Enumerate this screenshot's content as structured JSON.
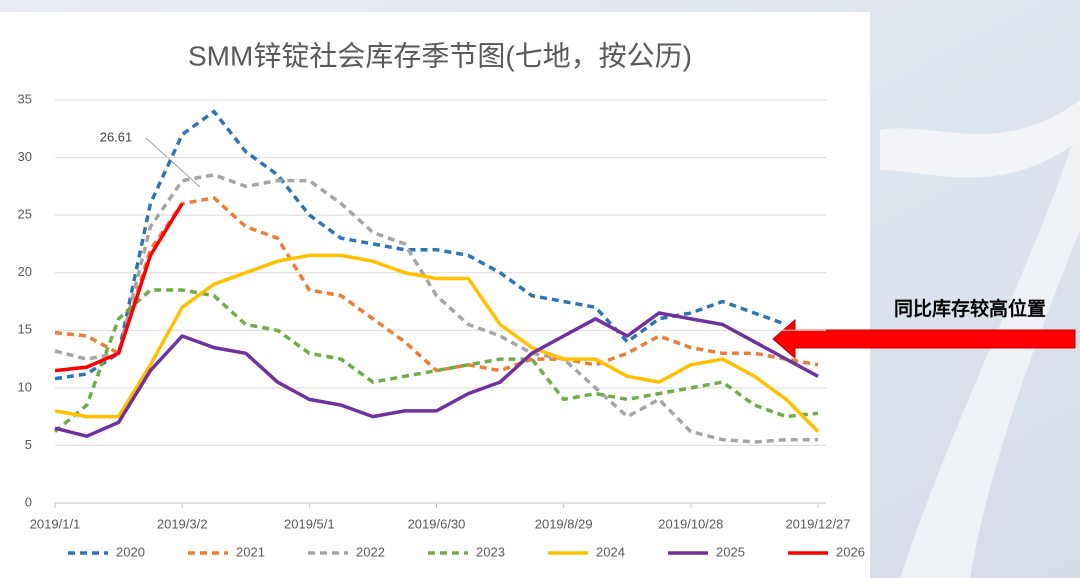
{
  "chart_data": {
    "type": "line",
    "title": "SMM锌锭社会库存季节图(七地，按公历)",
    "x": [
      0,
      15,
      30,
      45,
      60,
      75,
      90,
      105,
      120,
      135,
      150,
      165,
      180,
      195,
      210,
      225,
      240,
      255,
      270,
      285,
      300,
      315,
      330,
      345,
      360
    ],
    "xlim": [
      0,
      360
    ],
    "xticks": [
      {
        "value": 0,
        "label": "2019/1/1"
      },
      {
        "value": 60,
        "label": "2019/3/2"
      },
      {
        "value": 120,
        "label": "2019/5/1"
      },
      {
        "value": 180,
        "label": "2019/6/30"
      },
      {
        "value": 240,
        "label": "2019/8/29"
      },
      {
        "value": 300,
        "label": "2019/10/28"
      },
      {
        "value": 360,
        "label": "2019/12/27"
      }
    ],
    "ylim": [
      0,
      35
    ],
    "yticks": [
      0,
      5,
      10,
      15,
      20,
      25,
      30,
      35
    ],
    "grid": true,
    "legend": "bottom",
    "series": [
      {
        "name": "2020",
        "color": "#2e75b6",
        "dashed": true,
        "values": [
          10.8,
          11.2,
          13,
          26,
          32,
          34,
          30.5,
          28.5,
          25,
          23,
          22.5,
          22,
          22,
          21.5,
          20,
          18,
          17.5,
          17,
          14,
          16,
          16.5,
          17.5,
          16.5,
          15.5,
          null
        ]
      },
      {
        "name": "2021",
        "color": "#ed7d31",
        "dashed": true,
        "values": [
          14.8,
          14.5,
          13,
          22,
          26,
          26.5,
          24,
          23,
          18.5,
          18,
          16,
          14,
          11.5,
          12,
          11.5,
          12.5,
          12.5,
          12,
          13,
          14.5,
          13.5,
          13,
          13,
          12.5,
          12
        ]
      },
      {
        "name": "2022",
        "color": "#a5a5a5",
        "dashed": true,
        "values": [
          13.2,
          12.5,
          13,
          24,
          28,
          28.5,
          27.5,
          28,
          28,
          26,
          23.5,
          22.5,
          18,
          15.5,
          14.5,
          13,
          12.5,
          10,
          7.5,
          9,
          6.2,
          5.5,
          5.3,
          5.5,
          5.5
        ]
      },
      {
        "name": "2023",
        "color": "#70ad47",
        "dashed": true,
        "values": [
          6.2,
          8.5,
          16,
          18.5,
          18.5,
          18,
          15.5,
          15,
          13,
          12.5,
          10.5,
          11,
          11.5,
          12,
          12.5,
          12.5,
          9,
          9.5,
          9,
          9.5,
          10,
          10.5,
          8.5,
          7.5,
          7.8
        ]
      },
      {
        "name": "2024",
        "color": "#ffc000",
        "dashed": false,
        "values": [
          8,
          7.5,
          7.5,
          12,
          17,
          19,
          20,
          21,
          21.5,
          21.5,
          21,
          20,
          19.5,
          19.5,
          15.5,
          13.5,
          12.5,
          12.5,
          11,
          10.5,
          12,
          12.5,
          11,
          9,
          6.2
        ]
      },
      {
        "name": "2025",
        "color": "#7030a0",
        "dashed": false,
        "values": [
          6.5,
          5.8,
          7,
          11.5,
          14.5,
          13.5,
          13,
          10.5,
          9,
          8.5,
          7.5,
          8,
          8,
          9.5,
          10.5,
          13,
          14.5,
          16,
          14.5,
          16.5,
          16,
          15.5,
          14,
          12.5,
          11
        ]
      },
      {
        "name": "2026",
        "color": "#ff0000",
        "dashed": false,
        "values": [
          11.5,
          11.8,
          13,
          21.5,
          26,
          null,
          null,
          null,
          null,
          null,
          null,
          null,
          null,
          null,
          null,
          null,
          null,
          null,
          null,
          null,
          null,
          null,
          null,
          null,
          null
        ]
      }
    ],
    "annotations": [
      "26.61",
      "同比库存较高位置"
    ]
  }
}
